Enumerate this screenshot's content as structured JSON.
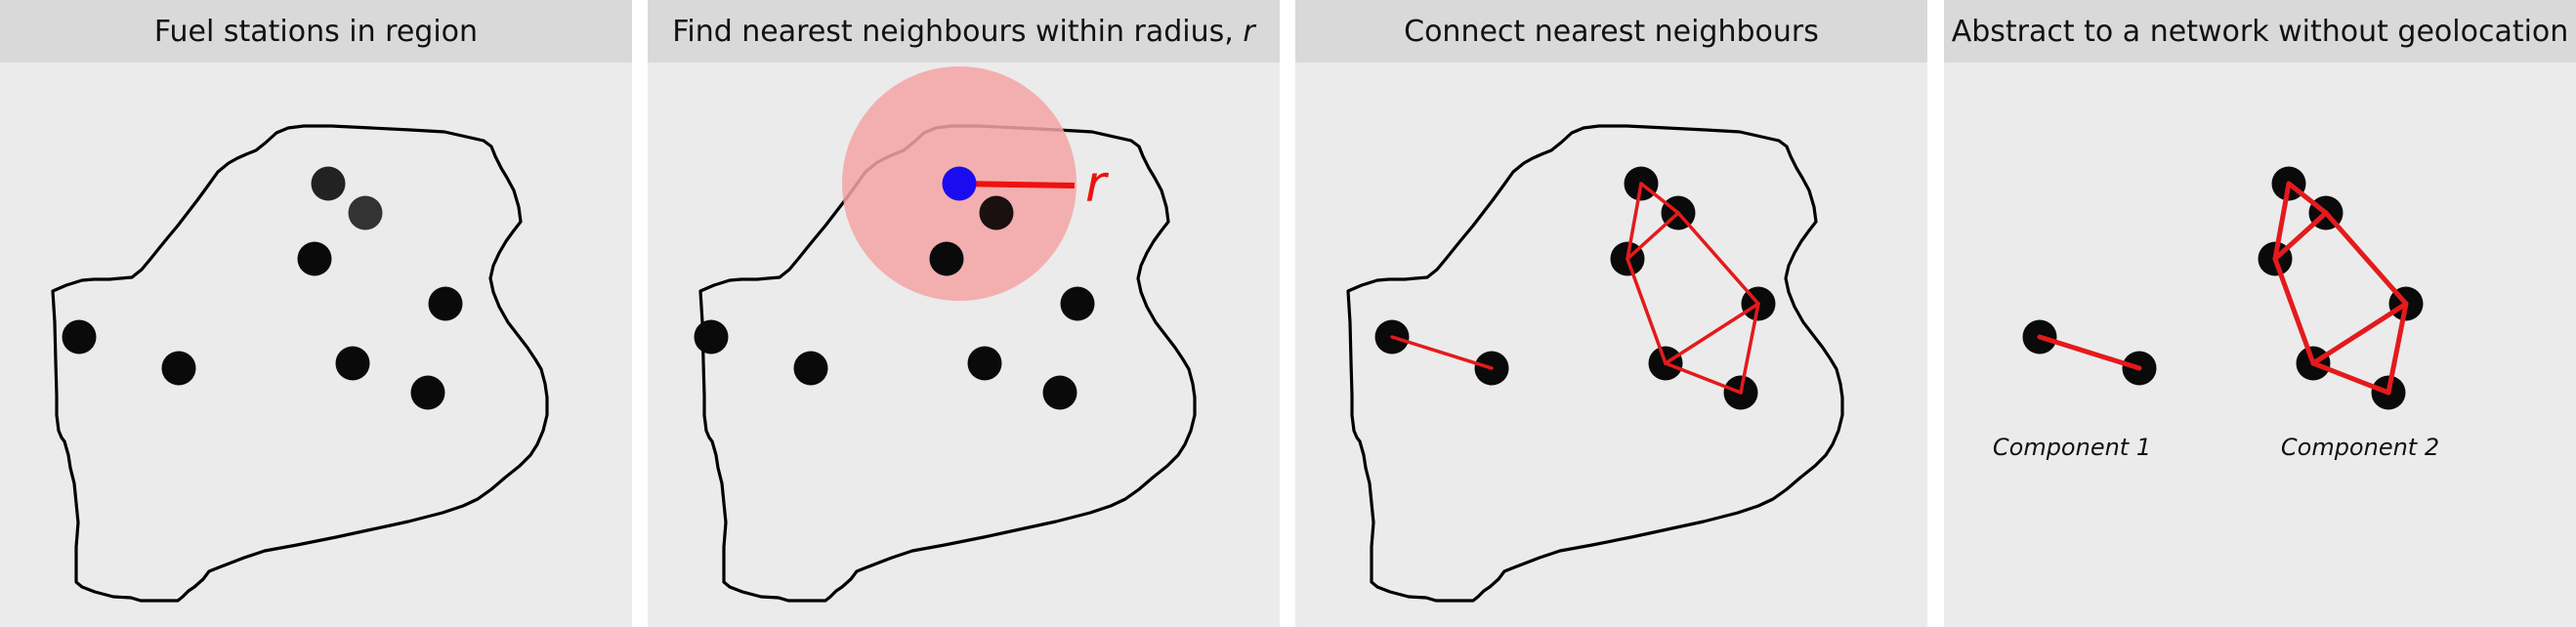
{
  "panels": [
    {
      "title": "Fuel stations in region"
    },
    {
      "title": "Find nearest neighbours within radius, ",
      "title_var": "r",
      "radius_label": "r"
    },
    {
      "title": "Connect nearest neighbours"
    },
    {
      "title": "Abstract to a network without geolocation",
      "components": [
        "Component 1",
        "Component 2"
      ]
    }
  ],
  "colors": {
    "panel_bg": "#ebebeb",
    "header_bg": "#d9d9d9",
    "station": "#0a0a0a",
    "edge": "#e41a1c",
    "radius_circle": "#f2aaaa",
    "focus_station": "#1a0cf0",
    "outline": "#000000"
  },
  "network": {
    "stations": [
      "s1",
      "s2",
      "s3",
      "s4",
      "s5",
      "s6",
      "s7",
      "s8",
      "s9"
    ],
    "edges": [
      [
        "s1",
        "s2"
      ],
      [
        "s3",
        "s4"
      ],
      [
        "s3",
        "s5"
      ],
      [
        "s4",
        "s5"
      ],
      [
        "s4",
        "s6"
      ],
      [
        "s5",
        "s7"
      ],
      [
        "s7",
        "s8"
      ],
      [
        "s6",
        "s8"
      ],
      [
        "s6",
        "s9"
      ],
      [
        "s8",
        "s9"
      ]
    ]
  }
}
